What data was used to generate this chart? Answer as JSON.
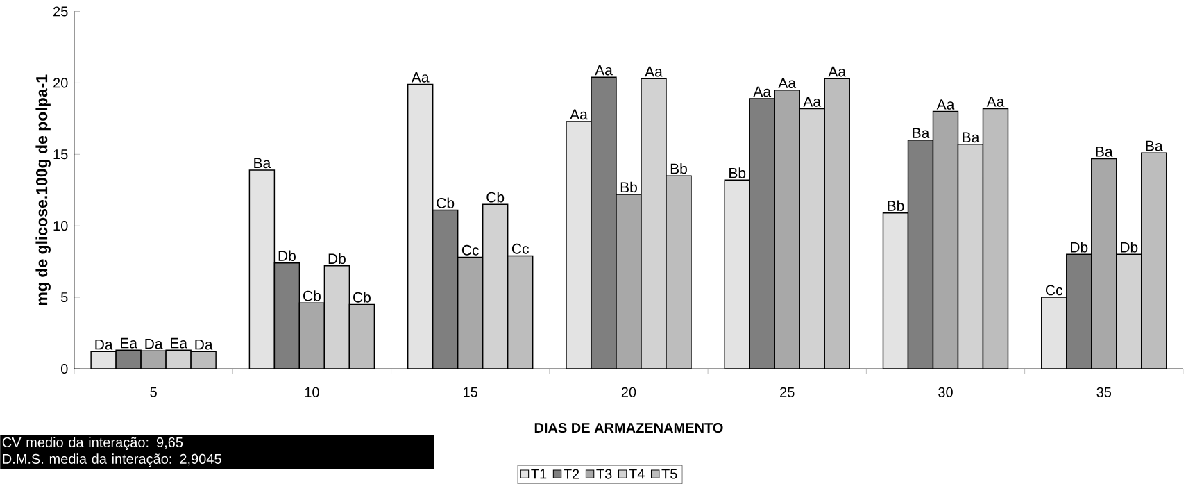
{
  "chart_data": {
    "type": "bar",
    "ylabel": "mg de glicose.100g de polpa-1",
    "xlabel": "DIAS DE ARMAZENAMENTO",
    "categories": [
      "5",
      "10",
      "15",
      "20",
      "25",
      "30",
      "35"
    ],
    "series": [
      {
        "name": "T1",
        "color": "#e3e3e3",
        "values": [
          1.2,
          13.9,
          19.9,
          17.3,
          13.2,
          10.9,
          5.0
        ],
        "value_labels": [
          "Da",
          "Ba",
          "Aa",
          "Aa",
          "Bb",
          "Bb",
          "Cc"
        ]
      },
      {
        "name": "T2",
        "color": "#7f7f7f",
        "values": [
          1.3,
          7.4,
          11.1,
          20.4,
          18.9,
          16.0,
          8.0
        ],
        "value_labels": [
          "Ea",
          "Db",
          "Cb",
          "Aa",
          "Aa",
          "Ba",
          "Db"
        ]
      },
      {
        "name": "T3",
        "color": "#a8a8a8",
        "values": [
          1.25,
          4.6,
          7.8,
          12.2,
          19.5,
          18.0,
          14.7
        ],
        "value_labels": [
          "Da",
          "Cb",
          "Cc",
          "Bb",
          "Aa",
          "Aa",
          "Ba"
        ]
      },
      {
        "name": "T4",
        "color": "#d2d2d2",
        "values": [
          1.3,
          7.2,
          11.5,
          20.3,
          18.2,
          15.7,
          8.0
        ],
        "value_labels": [
          "Ea",
          "Db",
          "Cb",
          "Aa",
          "Aa",
          "Ba",
          "Db"
        ]
      },
      {
        "name": "T5",
        "color": "#bdbdbd",
        "values": [
          1.2,
          4.5,
          7.9,
          13.5,
          20.3,
          18.2,
          15.1
        ],
        "value_labels": [
          "Da",
          "Cb",
          "Cc",
          "Bb",
          "Aa",
          "Aa",
          "Ba"
        ]
      }
    ],
    "ylim": [
      0,
      25
    ],
    "yticks": [
      0,
      5,
      10,
      15,
      20,
      25
    ],
    "grid": false,
    "legend": "bottom",
    "annotations": [
      "CV medio da interação: 9,65",
      "D.M.S. media da interação: 2,9045"
    ]
  }
}
